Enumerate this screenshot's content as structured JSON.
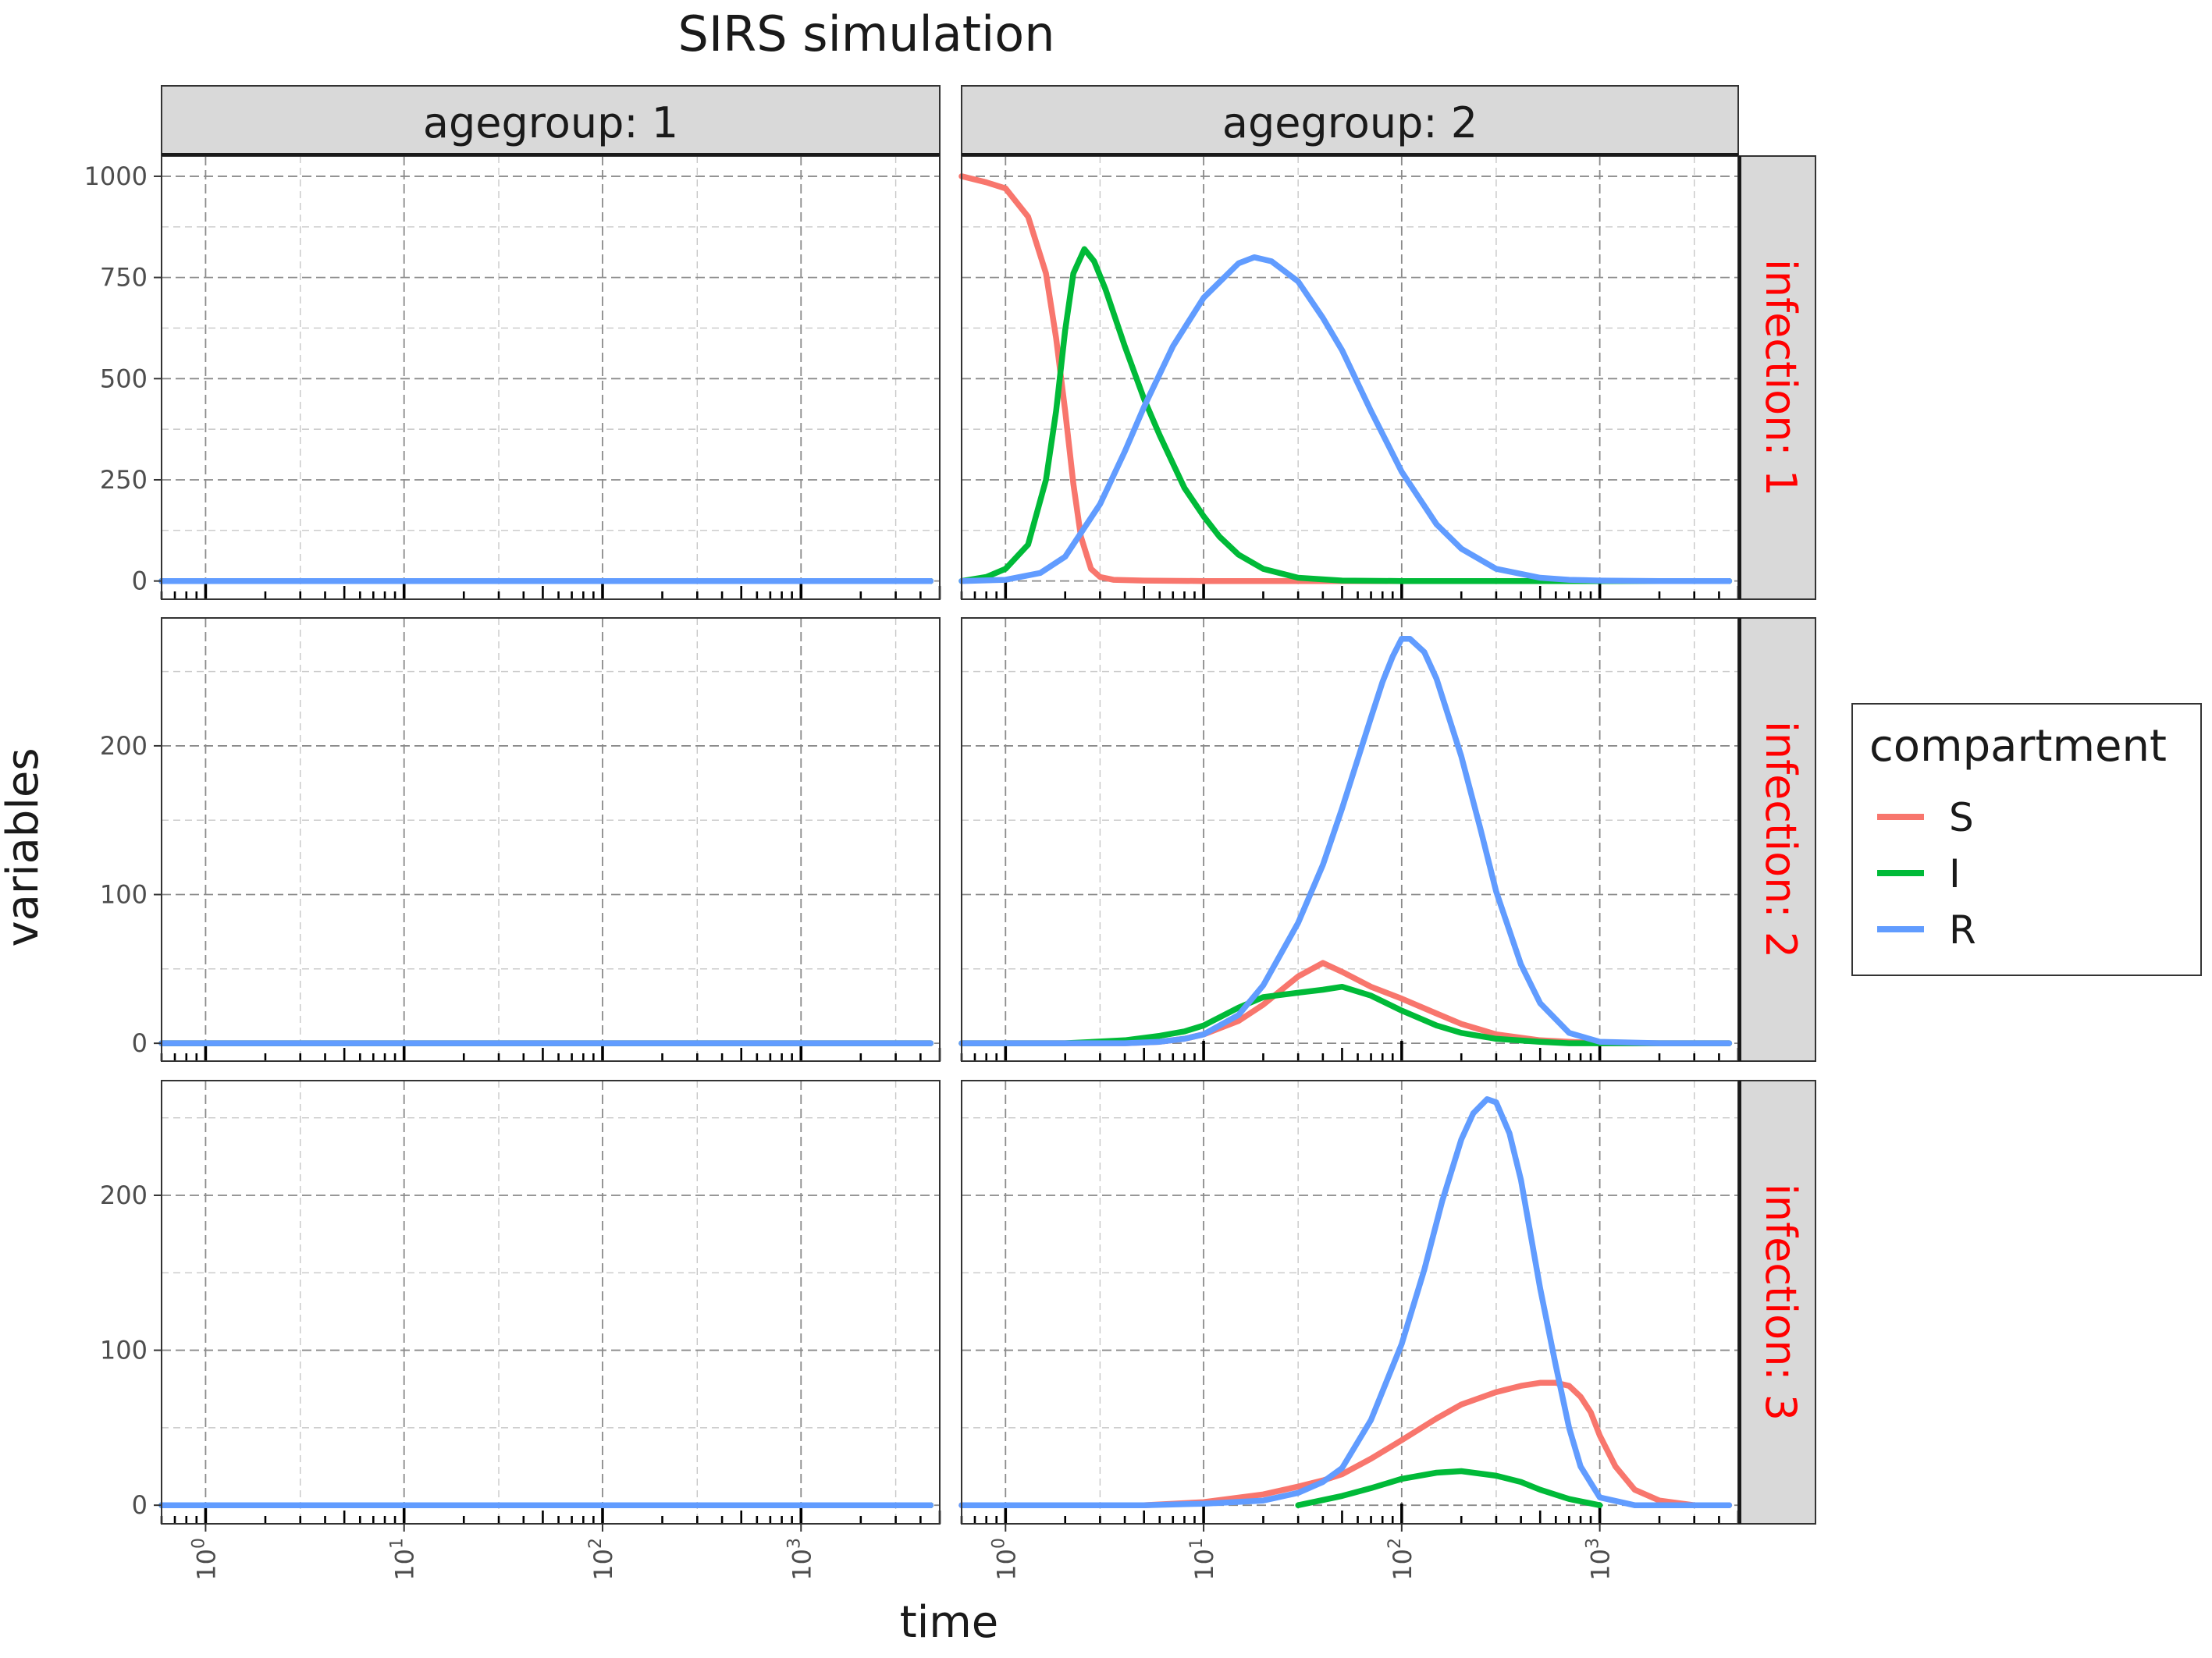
{
  "chart_data": {
    "type": "line",
    "title": "SIRS simulation",
    "xlabel": "time",
    "ylabel": "variables",
    "x_scale": "log10",
    "xlim": [
      0.6,
      5000
    ],
    "x_major_ticks": [
      1,
      10,
      100,
      1000
    ],
    "x_tick_labels": [
      {
        "base": "10",
        "exp": "0"
      },
      {
        "base": "10",
        "exp": "1"
      },
      {
        "base": "10",
        "exp": "2"
      },
      {
        "base": "10",
        "exp": "3"
      }
    ],
    "x_minor_ticks": [
      3,
      30,
      300,
      3000
    ],
    "grid": true,
    "legend": {
      "title": "compartment",
      "position": "right",
      "entries": [
        {
          "label": "S",
          "color": "#F8766D"
        },
        {
          "label": "I",
          "color": "#00BA38"
        },
        {
          "label": "R",
          "color": "#619CFF"
        }
      ]
    },
    "col_facets": [
      {
        "label": "agegroup: 1"
      },
      {
        "label": "agegroup: 2"
      }
    ],
    "row_facets": [
      {
        "label": "infection: 1",
        "color": "#FF0000",
        "ylim": [
          -45,
          1050
        ],
        "y_ticks": [
          0,
          250,
          500,
          750,
          1000
        ],
        "y_tick_labels": [
          "0",
          "250",
          "500",
          "750",
          "1000"
        ],
        "y_minor_ticks": [
          125,
          375,
          625,
          875
        ]
      },
      {
        "label": "infection: 2",
        "color": "#FF0000",
        "ylim": [
          -12,
          286
        ],
        "y_ticks": [
          0,
          100,
          200
        ],
        "y_tick_labels": [
          "0",
          "100",
          "200"
        ],
        "y_minor_ticks": [
          50,
          150,
          250
        ]
      },
      {
        "label": "infection: 3",
        "color": "#FF0000",
        "ylim": [
          -12,
          274
        ],
        "y_ticks": [
          0,
          100,
          200
        ],
        "y_tick_labels": [
          "0",
          "100",
          "200"
        ],
        "y_minor_ticks": [
          50,
          150,
          250
        ]
      }
    ],
    "panels": [
      {
        "row": 0,
        "col": 0,
        "series": [
          {
            "name": "S",
            "color": "#F8766D",
            "x": [
              0.6,
              4500
            ],
            "y": [
              0,
              0
            ]
          },
          {
            "name": "I",
            "color": "#00BA38",
            "x": [
              0.6,
              4500
            ],
            "y": [
              0,
              0
            ]
          },
          {
            "name": "R",
            "color": "#619CFF",
            "x": [
              0.6,
              4500
            ],
            "y": [
              0,
              0
            ]
          }
        ]
      },
      {
        "row": 0,
        "col": 1,
        "series": [
          {
            "name": "S",
            "color": "#F8766D",
            "x": [
              0.6,
              0.8,
              1.0,
              1.3,
              1.6,
              1.8,
              2.0,
              2.2,
              2.4,
              2.7,
              3.0,
              3.5,
              5,
              10,
              20,
              50,
              100,
              1000,
              4500
            ],
            "y": [
              1000,
              985,
              970,
              900,
              760,
              600,
              420,
              240,
              110,
              30,
              10,
              3,
              1,
              0,
              0,
              0,
              0,
              0,
              0
            ]
          },
          {
            "name": "I",
            "color": "#00BA38",
            "x": [
              0.6,
              0.8,
              1.0,
              1.3,
              1.6,
              1.8,
              2.0,
              2.2,
              2.5,
              2.8,
              3.2,
              4,
              5,
              6,
              7,
              8,
              10,
              12,
              15,
              20,
              30,
              50,
              100,
              1000,
              4500
            ],
            "y": [
              0,
              10,
              30,
              90,
              250,
              420,
              620,
              760,
              820,
              790,
              720,
              580,
              450,
              360,
              290,
              230,
              160,
              110,
              65,
              30,
              8,
              1,
              0,
              0,
              0
            ]
          },
          {
            "name": "R",
            "color": "#619CFF",
            "x": [
              0.6,
              1,
              1.5,
              2,
              3,
              4,
              5,
              7,
              10,
              15,
              18,
              22,
              30,
              40,
              50,
              70,
              100,
              150,
              200,
              300,
              500,
              700,
              1000,
              2000,
              4500
            ],
            "y": [
              0,
              3,
              20,
              60,
              190,
              320,
              430,
              580,
              700,
              785,
              800,
              790,
              740,
              650,
              570,
              420,
              270,
              140,
              80,
              30,
              8,
              3,
              1,
              0,
              0
            ]
          }
        ]
      },
      {
        "row": 1,
        "col": 0,
        "series": [
          {
            "name": "S",
            "color": "#F8766D",
            "x": [
              0.6,
              4500
            ],
            "y": [
              0,
              0
            ]
          },
          {
            "name": "I",
            "color": "#00BA38",
            "x": [
              0.6,
              4500
            ],
            "y": [
              0,
              0
            ]
          },
          {
            "name": "R",
            "color": "#619CFF",
            "x": [
              0.6,
              4500
            ],
            "y": [
              0,
              0
            ]
          }
        ]
      },
      {
        "row": 1,
        "col": 1,
        "series": [
          {
            "name": "S",
            "color": "#F8766D",
            "x": [
              0.6,
              2,
              4,
              6,
              8,
              10,
              15,
              20,
              30,
              40,
              50,
              70,
              100,
              150,
              200,
              300,
              500,
              700,
              1000,
              2000,
              4500
            ],
            "y": [
              0,
              0,
              0,
              1,
              3,
              6,
              15,
              26,
              45,
              54,
              48,
              38,
              30,
              20,
              13,
              6,
              2,
              1,
              0,
              0,
              0
            ]
          },
          {
            "name": "I",
            "color": "#00BA38",
            "x": [
              0.6,
              2,
              4,
              6,
              8,
              10,
              15,
              20,
              30,
              40,
              50,
              70,
              100,
              150,
              200,
              300,
              500,
              700,
              1000,
              2000,
              4500
            ],
            "y": [
              0,
              0,
              2,
              5,
              8,
              12,
              24,
              31,
              34,
              36,
              38,
              32,
              22,
              12,
              7,
              3,
              1,
              0,
              0,
              0,
              0
            ]
          },
          {
            "name": "R",
            "color": "#619CFF",
            "x": [
              0.6,
              2,
              4,
              6,
              8,
              10,
              15,
              20,
              30,
              40,
              50,
              60,
              70,
              80,
              90,
              100,
              110,
              130,
              150,
              200,
              250,
              300,
              400,
              500,
              700,
              1000,
              2000,
              4500
            ],
            "y": [
              0,
              0,
              0,
              1,
              3,
              6,
              19,
              39,
              81,
              120,
              158,
              191,
              219,
              243,
              260,
              272,
              272,
              263,
              245,
              193,
              144,
              102,
              53,
              27,
              7,
              1,
              0,
              0
            ]
          }
        ]
      },
      {
        "row": 2,
        "col": 0,
        "series": [
          {
            "name": "S",
            "color": "#F8766D",
            "x": [
              0.6,
              4500
            ],
            "y": [
              0,
              0
            ]
          },
          {
            "name": "I",
            "color": "#00BA38",
            "x": [
              0.6,
              4500
            ],
            "y": [
              0,
              0
            ]
          },
          {
            "name": "R",
            "color": "#619CFF",
            "x": [
              0.6,
              4500
            ],
            "y": [
              0,
              0
            ]
          }
        ]
      },
      {
        "row": 2,
        "col": 1,
        "series": [
          {
            "name": "S",
            "color": "#F8766D",
            "x": [
              0.6,
              5,
              10,
              20,
              30,
              40,
              50,
              70,
              100,
              150,
              200,
              300,
              400,
              500,
              600,
              700,
              800,
              900,
              1000,
              1200,
              1500,
              2000,
              3000,
              4500
            ],
            "y": [
              0,
              0,
              2,
              7,
              12,
              16,
              20,
              30,
              42,
              56,
              65,
              73,
              77,
              79,
              79,
              77,
              70,
              60,
              45,
              25,
              10,
              3,
              0,
              0
            ]
          },
          {
            "name": "I",
            "color": "#00BA38",
            "x": [
              30,
              50,
              70,
              100,
              150,
              200,
              300,
              400,
              500,
              700,
              1000
            ],
            "y": [
              0,
              6,
              11,
              17,
              21,
              22,
              19,
              15,
              10,
              4,
              0
            ]
          },
          {
            "name": "R",
            "color": "#619CFF",
            "x": [
              0.6,
              5,
              10,
              20,
              30,
              40,
              50,
              70,
              100,
              130,
              160,
              200,
              230,
              270,
              300,
              350,
              400,
              500,
              600,
              700,
              800,
              1000,
              1500,
              2000,
              4500
            ],
            "y": [
              0,
              0,
              1,
              3,
              8,
              15,
              24,
              55,
              104,
              152,
              196,
              236,
              253,
              262,
              260,
              240,
              210,
              140,
              90,
              50,
              25,
              5,
              0,
              0,
              0
            ]
          }
        ]
      }
    ]
  }
}
